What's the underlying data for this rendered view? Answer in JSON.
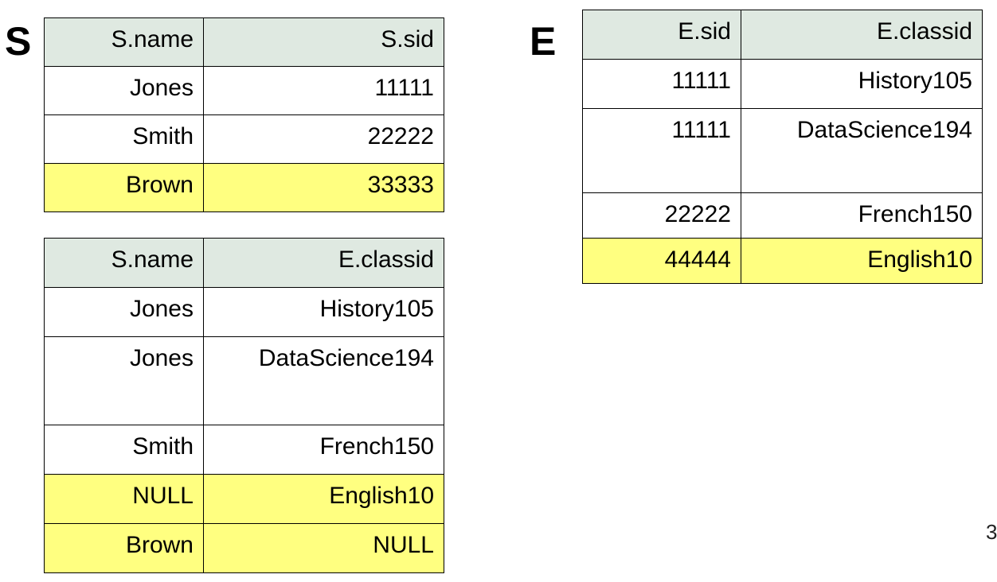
{
  "labels": {
    "student": "S",
    "enrolled": "E"
  },
  "colors": {
    "header_bg": "#dfe9e1",
    "highlight_bg": "#ffff80",
    "border": "#000000"
  },
  "table_s": {
    "headers": [
      "S.name",
      "S.sid"
    ],
    "rows": [
      {
        "name": "Jones",
        "sid": "11111",
        "highlighted": false
      },
      {
        "name": "Smith",
        "sid": "22222",
        "highlighted": false
      },
      {
        "name": "Brown",
        "sid": "33333",
        "highlighted": true
      }
    ]
  },
  "table_e": {
    "headers": [
      "E.sid",
      "E.classid"
    ],
    "rows": [
      {
        "sid": "11111",
        "classid": "History105",
        "highlighted": false
      },
      {
        "sid": "11111",
        "classid": "DataScience194",
        "highlighted": false
      },
      {
        "sid": "22222",
        "classid": "French150",
        "highlighted": false
      },
      {
        "sid": "44444",
        "classid": "English10",
        "highlighted": true
      }
    ]
  },
  "table_join": {
    "headers": [
      "S.name",
      "E.classid"
    ],
    "rows": [
      {
        "name": "Jones",
        "classid": "History105",
        "highlighted": false
      },
      {
        "name": "Jones",
        "classid": "DataScience194",
        "highlighted": false
      },
      {
        "name": "Smith",
        "classid": "French150",
        "highlighted": false
      },
      {
        "name": "NULL",
        "classid": "English10",
        "highlighted": true
      },
      {
        "name": "Brown",
        "classid": "NULL",
        "highlighted": true
      }
    ]
  },
  "page_number": "3"
}
